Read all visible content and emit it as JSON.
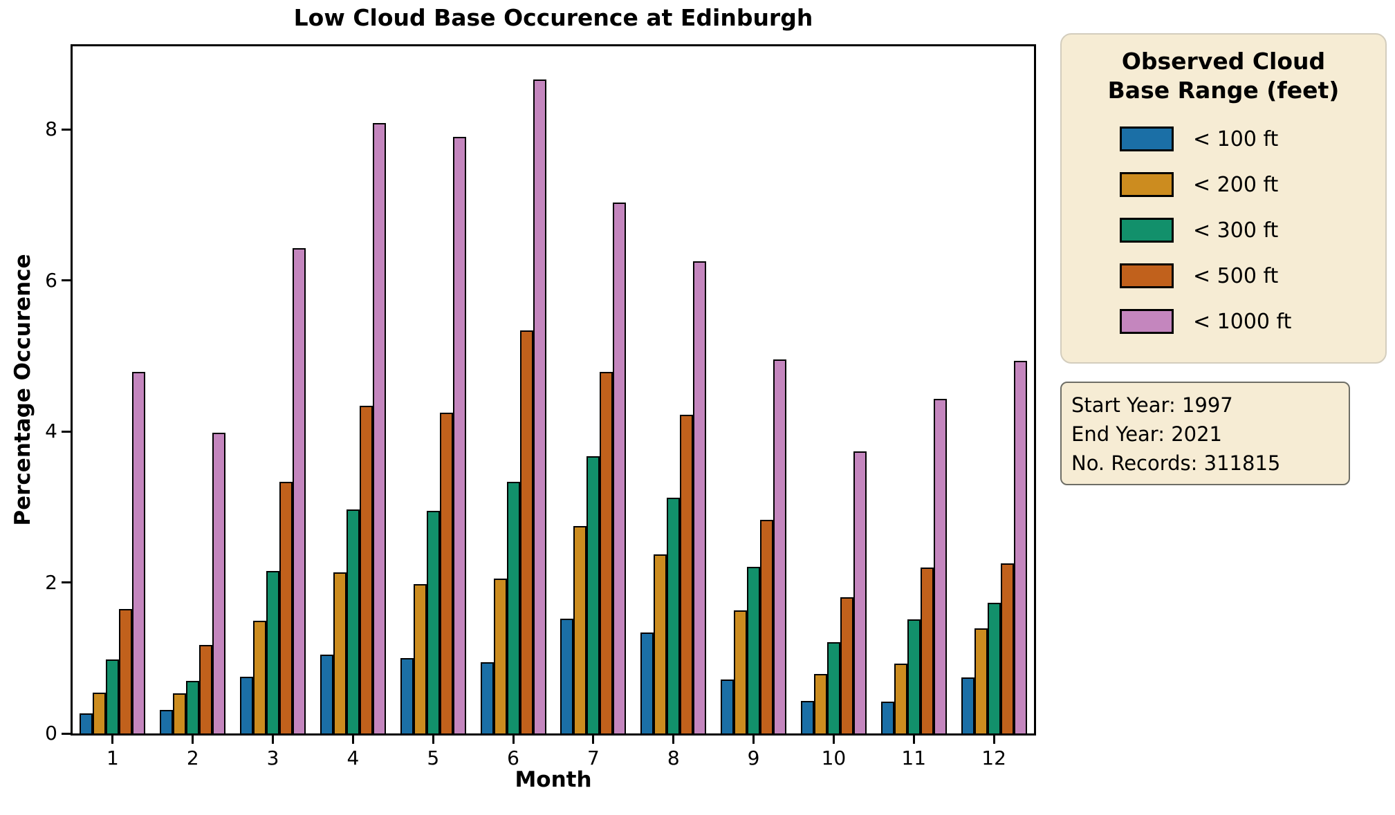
{
  "title": "Low Cloud Base Occurence at Edinburgh",
  "axes": {
    "xlabel": "Month",
    "ylabel": "Percentage Occurence",
    "yticks": [
      "0",
      "2",
      "4",
      "6",
      "8"
    ],
    "ytick_values": [
      0,
      2,
      4,
      6,
      8
    ],
    "xticks": [
      "1",
      "2",
      "3",
      "4",
      "5",
      "6",
      "7",
      "8",
      "9",
      "10",
      "11",
      "12"
    ]
  },
  "legend": {
    "title_line1": "Observed Cloud",
    "title_line2": "Base Range (feet)",
    "items": [
      {
        "label": "< 100 ft",
        "color": "#1B6FA6"
      },
      {
        "label": "< 200 ft",
        "color": "#CC8C1F"
      },
      {
        "label": "< 300 ft",
        "color": "#12906B"
      },
      {
        "label": "< 500 ft",
        "color": "#C1611C"
      },
      {
        "label": "< 1000 ft",
        "color": "#C486BE"
      }
    ]
  },
  "info_box": {
    "lines": [
      "Start Year: 1997",
      "End Year: 2021",
      "No. Records: 311815"
    ]
  },
  "style_colors": {
    "box_background": "#F6ECD4",
    "legend_border": "#D3CDBD",
    "info_border": "#6E6E66",
    "bar_edge": "#000000"
  },
  "chart_data": {
    "type": "bar",
    "grouped": true,
    "title": "Low Cloud Base Occurence at Edinburgh",
    "xlabel": "Month",
    "ylabel": "Percentage Occurence",
    "legend_title": "Observed Cloud Base Range (feet)",
    "legend_position": "outside-right",
    "grid": false,
    "ylim": [
      0,
      9.1
    ],
    "categories": [
      "1",
      "2",
      "3",
      "4",
      "5",
      "6",
      "7",
      "8",
      "9",
      "10",
      "11",
      "12"
    ],
    "series": [
      {
        "name": "< 100 ft",
        "color": "#1B6FA6",
        "values": [
          0.27,
          0.31,
          0.75,
          1.04,
          1.0,
          0.94,
          1.52,
          1.34,
          0.71,
          0.43,
          0.42,
          0.74
        ]
      },
      {
        "name": "< 200 ft",
        "color": "#CC8C1F",
        "values": [
          0.54,
          0.53,
          1.49,
          2.13,
          1.98,
          2.05,
          2.75,
          2.37,
          1.63,
          0.79,
          0.92,
          1.39
        ]
      },
      {
        "name": "< 300 ft",
        "color": "#12906B",
        "values": [
          0.98,
          0.7,
          2.15,
          2.97,
          2.95,
          3.33,
          3.67,
          3.12,
          2.21,
          1.21,
          1.51,
          1.73
        ]
      },
      {
        "name": "< 500 ft",
        "color": "#C1611C",
        "values": [
          1.65,
          1.17,
          3.33,
          4.34,
          4.25,
          5.34,
          4.79,
          4.22,
          2.83,
          1.8,
          2.2,
          2.25
        ]
      },
      {
        "name": "< 1000 ft",
        "color": "#C486BE",
        "values": [
          4.79,
          3.98,
          6.43,
          8.08,
          7.9,
          8.66,
          7.03,
          6.25,
          4.95,
          3.73,
          4.43,
          4.93
        ]
      }
    ]
  }
}
